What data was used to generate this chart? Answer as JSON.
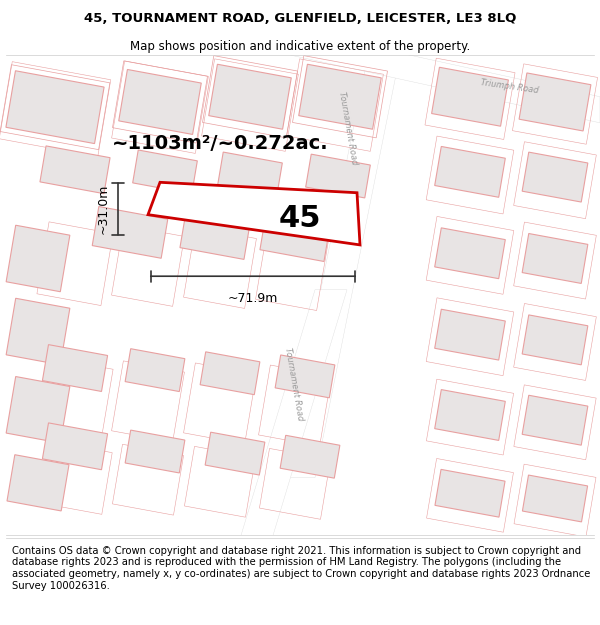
{
  "title_line1": "45, TOURNAMENT ROAD, GLENFIELD, LEICESTER, LE3 8LQ",
  "title_line2": "Map shows position and indicative extent of the property.",
  "footer_text": "Contains OS data © Crown copyright and database right 2021. This information is subject to Crown copyright and database rights 2023 and is reproduced with the permission of HM Land Registry. The polygons (including the associated geometry, namely x, y co-ordinates) are subject to Crown copyright and database rights 2023 Ordnance Survey 100026316.",
  "area_label": "~1103m²/~0.272ac.",
  "property_number": "45",
  "width_label": "~71.9m",
  "height_label": "~31.0m",
  "map_bg": "#ffffff",
  "building_fill": "#e8e4e4",
  "building_outline": "#e8a0a0",
  "road_fill": "#ffffff",
  "road_outline": "#e8a0a0",
  "plot_outline_fill": "#f5f5f5",
  "highlight_outline": "#cc0000",
  "road_label_color": "#999999",
  "dim_line_color": "#333333",
  "title_fontsize": 9.5,
  "subtitle_fontsize": 8.5,
  "footer_fontsize": 7.2,
  "area_fontsize": 14,
  "num_fontsize": 22,
  "dim_fontsize": 9,
  "road_fontsize": 6
}
